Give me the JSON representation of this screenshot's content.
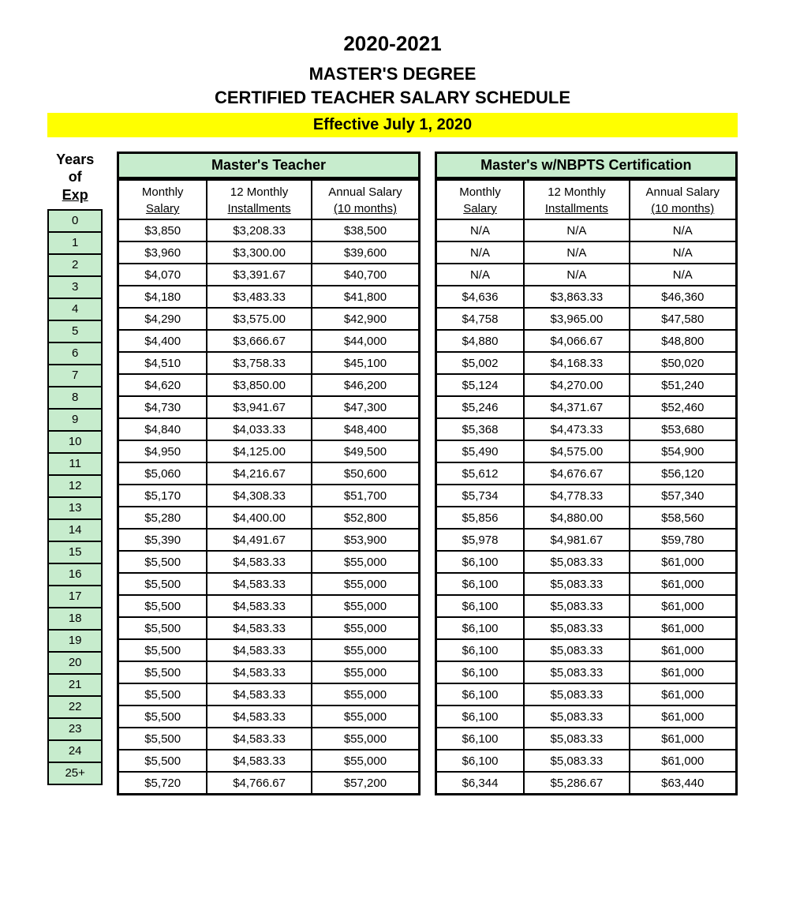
{
  "header": {
    "year_range": "2020-2021",
    "degree_line": "MASTER'S DEGREE",
    "schedule_line": "CERTIFIED TEACHER SALARY SCHEDULE",
    "effective": "Effective July 1, 2020"
  },
  "years_header": {
    "line1": "Years",
    "line2": "of",
    "line3": "Exp"
  },
  "groups": [
    {
      "title": "Master's Teacher",
      "col_labels_top": [
        "Monthly",
        "12 Monthly",
        "Annual Salary"
      ],
      "col_labels_bot": [
        "Salary",
        "Installments",
        "(10 months)"
      ]
    },
    {
      "title": "Master's w/NBPTS Certification",
      "col_labels_top": [
        "Monthly",
        "12 Monthly",
        "Annual Salary"
      ],
      "col_labels_bot": [
        "Salary",
        "Installments",
        "(10 months)"
      ]
    }
  ],
  "rows": [
    {
      "year": "0",
      "a": [
        "$3,850",
        "$3,208.33",
        "$38,500"
      ],
      "b": [
        "N/A",
        "N/A",
        "N/A"
      ]
    },
    {
      "year": "1",
      "a": [
        "$3,960",
        "$3,300.00",
        "$39,600"
      ],
      "b": [
        "N/A",
        "N/A",
        "N/A"
      ]
    },
    {
      "year": "2",
      "a": [
        "$4,070",
        "$3,391.67",
        "$40,700"
      ],
      "b": [
        "N/A",
        "N/A",
        "N/A"
      ]
    },
    {
      "year": "3",
      "a": [
        "$4,180",
        "$3,483.33",
        "$41,800"
      ],
      "b": [
        "$4,636",
        "$3,863.33",
        "$46,360"
      ]
    },
    {
      "year": "4",
      "a": [
        "$4,290",
        "$3,575.00",
        "$42,900"
      ],
      "b": [
        "$4,758",
        "$3,965.00",
        "$47,580"
      ]
    },
    {
      "year": "5",
      "a": [
        "$4,400",
        "$3,666.67",
        "$44,000"
      ],
      "b": [
        "$4,880",
        "$4,066.67",
        "$48,800"
      ]
    },
    {
      "year": "6",
      "a": [
        "$4,510",
        "$3,758.33",
        "$45,100"
      ],
      "b": [
        "$5,002",
        "$4,168.33",
        "$50,020"
      ]
    },
    {
      "year": "7",
      "a": [
        "$4,620",
        "$3,850.00",
        "$46,200"
      ],
      "b": [
        "$5,124",
        "$4,270.00",
        "$51,240"
      ]
    },
    {
      "year": "8",
      "a": [
        "$4,730",
        "$3,941.67",
        "$47,300"
      ],
      "b": [
        "$5,246",
        "$4,371.67",
        "$52,460"
      ]
    },
    {
      "year": "9",
      "a": [
        "$4,840",
        "$4,033.33",
        "$48,400"
      ],
      "b": [
        "$5,368",
        "$4,473.33",
        "$53,680"
      ]
    },
    {
      "year": "10",
      "a": [
        "$4,950",
        "$4,125.00",
        "$49,500"
      ],
      "b": [
        "$5,490",
        "$4,575.00",
        "$54,900"
      ]
    },
    {
      "year": "11",
      "a": [
        "$5,060",
        "$4,216.67",
        "$50,600"
      ],
      "b": [
        "$5,612",
        "$4,676.67",
        "$56,120"
      ]
    },
    {
      "year": "12",
      "a": [
        "$5,170",
        "$4,308.33",
        "$51,700"
      ],
      "b": [
        "$5,734",
        "$4,778.33",
        "$57,340"
      ]
    },
    {
      "year": "13",
      "a": [
        "$5,280",
        "$4,400.00",
        "$52,800"
      ],
      "b": [
        "$5,856",
        "$4,880.00",
        "$58,560"
      ]
    },
    {
      "year": "14",
      "a": [
        "$5,390",
        "$4,491.67",
        "$53,900"
      ],
      "b": [
        "$5,978",
        "$4,981.67",
        "$59,780"
      ]
    },
    {
      "year": "15",
      "a": [
        "$5,500",
        "$4,583.33",
        "$55,000"
      ],
      "b": [
        "$6,100",
        "$5,083.33",
        "$61,000"
      ]
    },
    {
      "year": "16",
      "a": [
        "$5,500",
        "$4,583.33",
        "$55,000"
      ],
      "b": [
        "$6,100",
        "$5,083.33",
        "$61,000"
      ]
    },
    {
      "year": "17",
      "a": [
        "$5,500",
        "$4,583.33",
        "$55,000"
      ],
      "b": [
        "$6,100",
        "$5,083.33",
        "$61,000"
      ]
    },
    {
      "year": "18",
      "a": [
        "$5,500",
        "$4,583.33",
        "$55,000"
      ],
      "b": [
        "$6,100",
        "$5,083.33",
        "$61,000"
      ]
    },
    {
      "year": "19",
      "a": [
        "$5,500",
        "$4,583.33",
        "$55,000"
      ],
      "b": [
        "$6,100",
        "$5,083.33",
        "$61,000"
      ]
    },
    {
      "year": "20",
      "a": [
        "$5,500",
        "$4,583.33",
        "$55,000"
      ],
      "b": [
        "$6,100",
        "$5,083.33",
        "$61,000"
      ]
    },
    {
      "year": "21",
      "a": [
        "$5,500",
        "$4,583.33",
        "$55,000"
      ],
      "b": [
        "$6,100",
        "$5,083.33",
        "$61,000"
      ]
    },
    {
      "year": "22",
      "a": [
        "$5,500",
        "$4,583.33",
        "$55,000"
      ],
      "b": [
        "$6,100",
        "$5,083.33",
        "$61,000"
      ]
    },
    {
      "year": "23",
      "a": [
        "$5,500",
        "$4,583.33",
        "$55,000"
      ],
      "b": [
        "$6,100",
        "$5,083.33",
        "$61,000"
      ]
    },
    {
      "year": "24",
      "a": [
        "$5,500",
        "$4,583.33",
        "$55,000"
      ],
      "b": [
        "$6,100",
        "$5,083.33",
        "$61,000"
      ]
    },
    {
      "year": "25+",
      "a": [
        "$5,720",
        "$4,766.67",
        "$57,200"
      ],
      "b": [
        "$6,344",
        "$5,286.67",
        "$63,440"
      ]
    }
  ],
  "styling": {
    "highlight_bg": "#ffff00",
    "cell_green_bg": "#c7eccd",
    "border_color": "#000000",
    "page_bg": "#ffffff",
    "font_family": "Arial",
    "title_fontsize": 26,
    "subtitle_fontsize": 22,
    "body_fontsize": 15
  }
}
